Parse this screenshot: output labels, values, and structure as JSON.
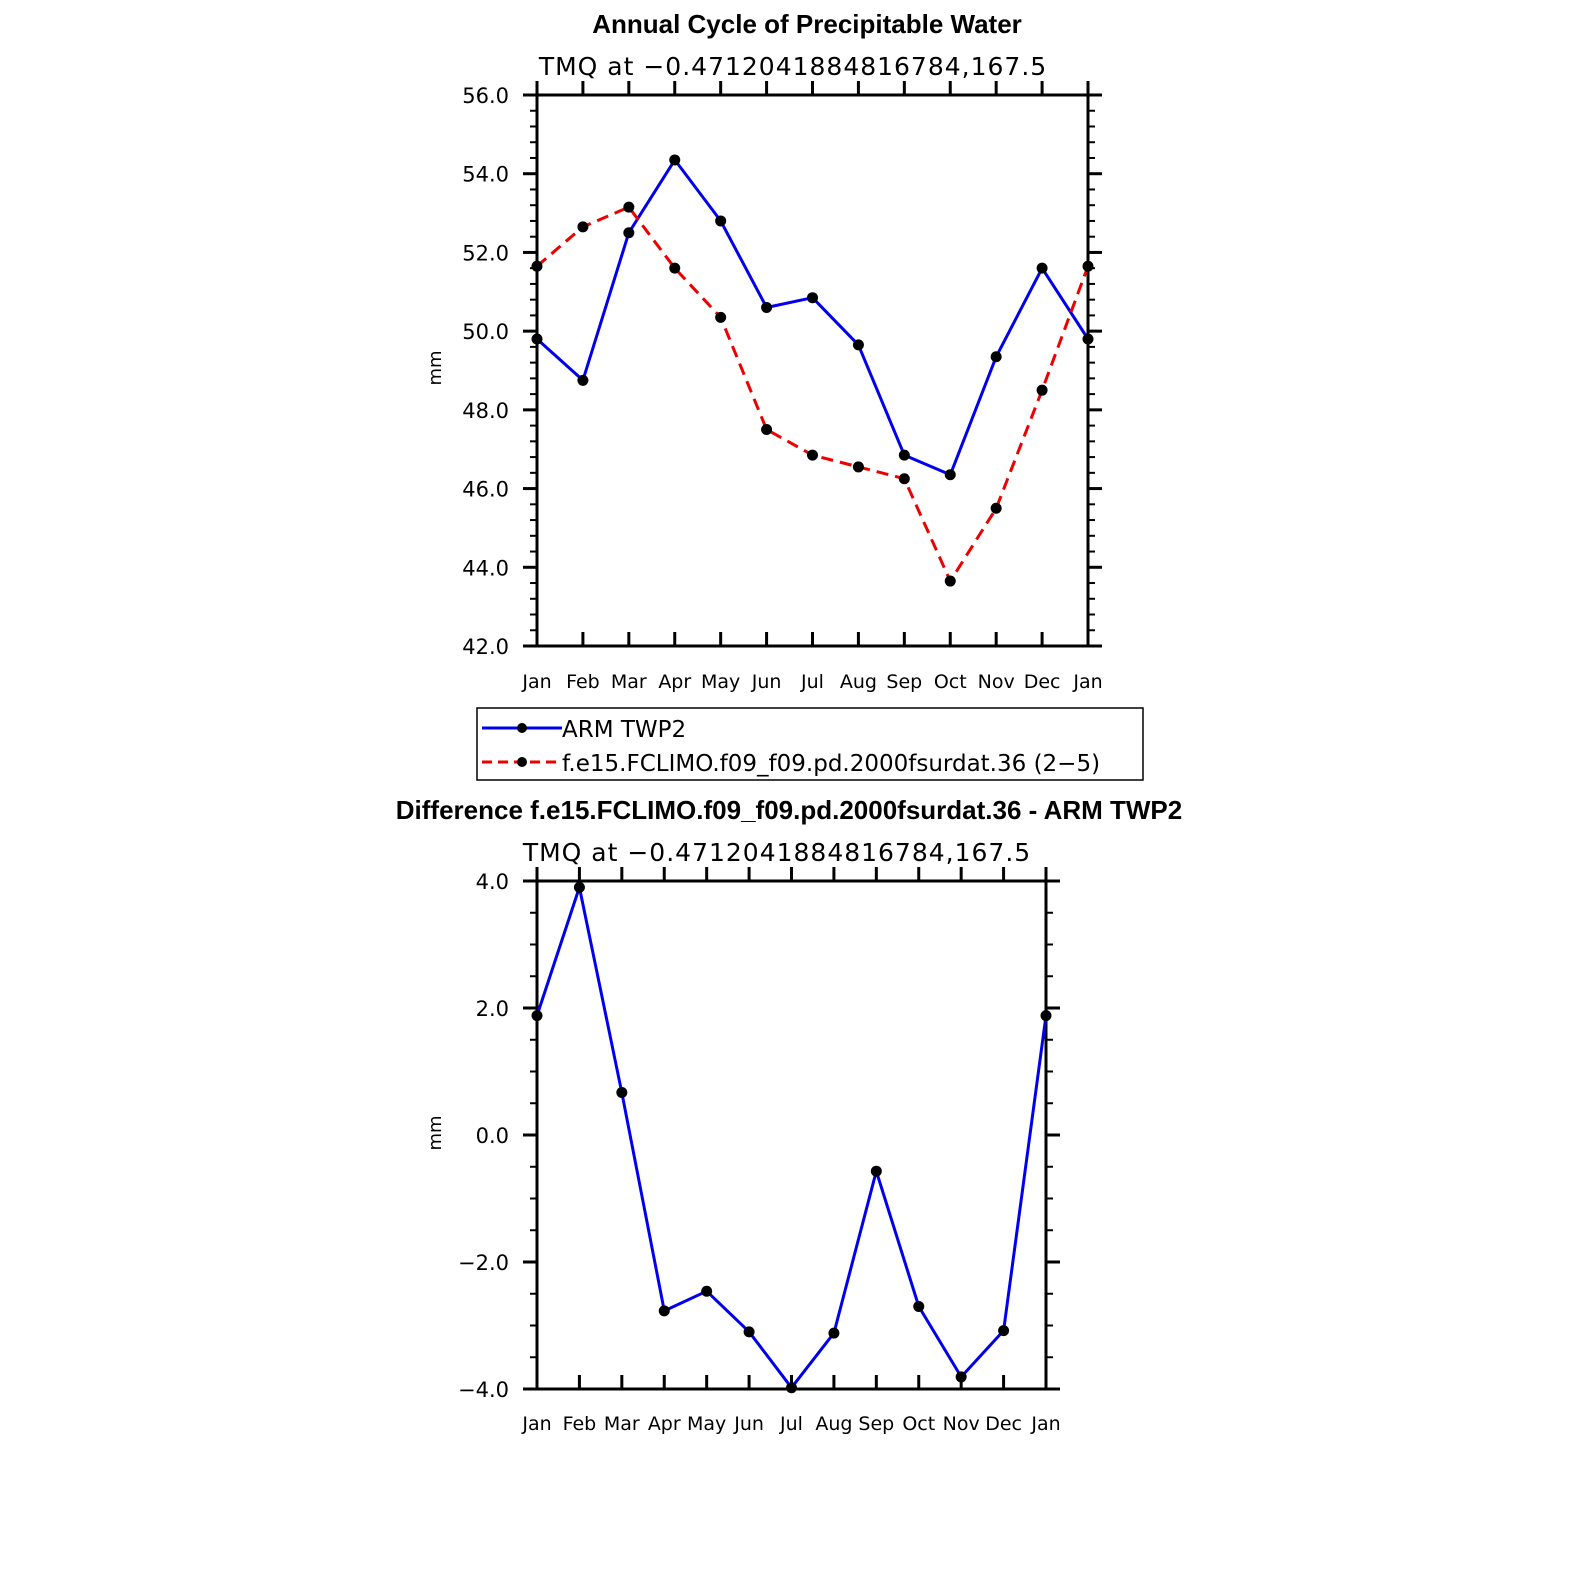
{
  "chart_data": [
    {
      "type": "line",
      "title": "Annual Cycle of Precipitable Water",
      "subtitle": "TMQ at −0.4712041884816784,167.5",
      "xlabel": "",
      "ylabel": "mm",
      "categories": [
        "Jan",
        "Feb",
        "Mar",
        "Apr",
        "May",
        "Jun",
        "Jul",
        "Aug",
        "Sep",
        "Oct",
        "Nov",
        "Dec",
        "Jan"
      ],
      "ylim": [
        42.0,
        56.0
      ],
      "yticks": [
        "42.0",
        "44.0",
        "46.0",
        "48.0",
        "50.0",
        "52.0",
        "54.0",
        "56.0"
      ],
      "grid": false,
      "legend_position": "below",
      "series": [
        {
          "name": "ARM TWP2",
          "color": "#0000ee",
          "style": "solid",
          "values": [
            49.8,
            48.75,
            52.5,
            54.35,
            52.8,
            50.6,
            50.85,
            49.65,
            46.85,
            46.35,
            49.35,
            51.6,
            49.8
          ]
        },
        {
          "name": "f.e15.FCLIMO.f09_f09.pd.2000fsurdat.36 (2−5)",
          "color": "#ee0000",
          "style": "dashed",
          "values": [
            51.65,
            52.65,
            53.15,
            51.6,
            50.35,
            47.5,
            46.85,
            46.55,
            46.25,
            43.65,
            45.5,
            48.5,
            51.65
          ]
        }
      ]
    },
    {
      "type": "line",
      "title": "Difference f.e15.FCLIMO.f09_f09.pd.2000fsurdat.36 - ARM TWP2",
      "subtitle": "TMQ at −0.4712041884816784,167.5",
      "xlabel": "",
      "ylabel": "mm",
      "categories": [
        "Jan",
        "Feb",
        "Mar",
        "Apr",
        "May",
        "Jun",
        "Jul",
        "Aug",
        "Sep",
        "Oct",
        "Nov",
        "Dec",
        "Jan"
      ],
      "ylim": [
        -4.0,
        4.0
      ],
      "yticks": [
        "−4.0",
        "−2.0",
        "0.0",
        "2.0",
        "4.0"
      ],
      "grid": false,
      "series": [
        {
          "name": "",
          "color": "#0000ee",
          "style": "solid",
          "values": [
            1.88,
            3.9,
            0.67,
            -2.77,
            -2.46,
            -3.1,
            -3.98,
            -3.12,
            -0.57,
            -2.7,
            -3.81,
            -3.08,
            1.88
          ]
        }
      ]
    }
  ]
}
